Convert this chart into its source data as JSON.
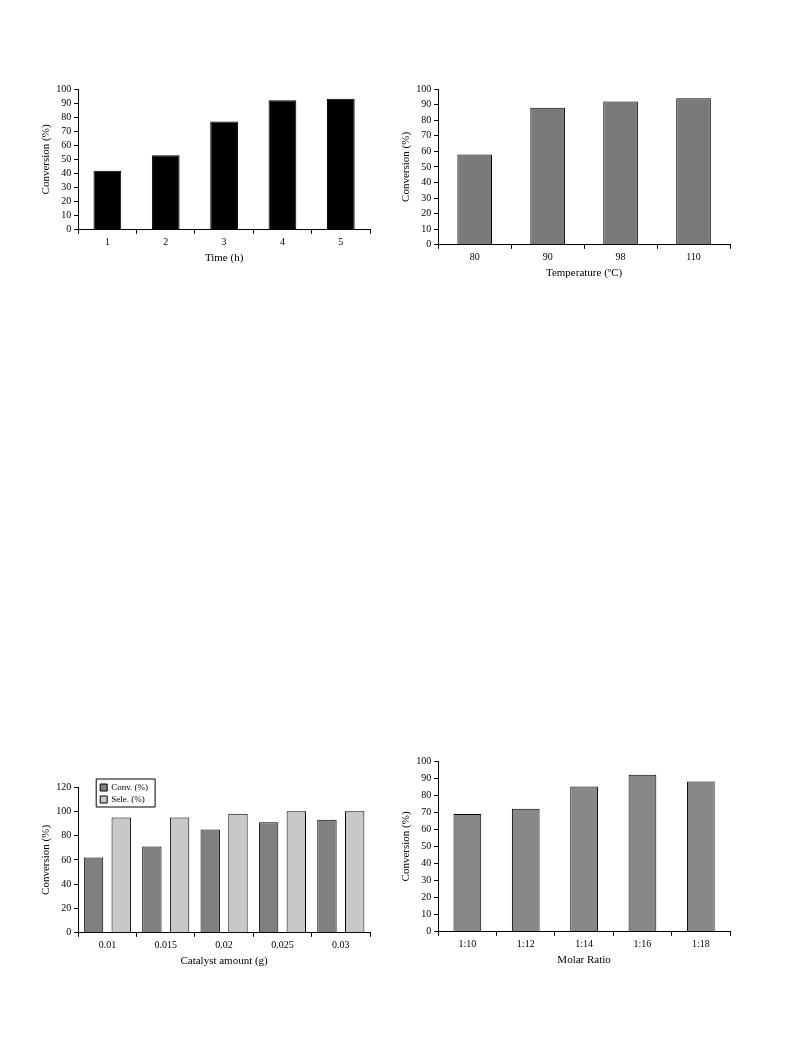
{
  "chart_data": [
    {
      "type": "bar",
      "xlabel": "Time (h)",
      "ylabel": "Conversion (%)",
      "categories": [
        "1",
        "2",
        "3",
        "4",
        "5"
      ],
      "values": [
        42,
        53,
        77,
        92,
        93
      ],
      "color": "#000000",
      "ylim": [
        0,
        100
      ],
      "yticks": [
        0,
        10,
        20,
        30,
        40,
        50,
        60,
        70,
        80,
        90,
        100
      ],
      "grid": false,
      "legend": false
    },
    {
      "type": "bar",
      "xlabel": "Temperature (ºC)",
      "ylabel": "Conversion (%)",
      "categories": [
        "80",
        "90",
        "98",
        "110"
      ],
      "values": [
        58,
        88,
        92,
        94
      ],
      "color": "#7a7a7a",
      "ylim": [
        0,
        100
      ],
      "yticks": [
        0,
        10,
        20,
        30,
        40,
        50,
        60,
        70,
        80,
        90,
        100
      ],
      "grid": false,
      "legend": false
    },
    {
      "type": "bar",
      "xlabel": "Catalyst amount (g)",
      "ylabel": "Conversion (%)",
      "categories": [
        "0.01",
        "0.015",
        "0.02",
        "0.025",
        "0.03"
      ],
      "series": [
        {
          "name": "Conv. (%)",
          "color": "#808080",
          "values": [
            62,
            71,
            85,
            91,
            93
          ]
        },
        {
          "name": "Sele. (%)",
          "color": "#c8c8c8",
          "values": [
            95,
            95,
            98,
            100,
            100
          ]
        }
      ],
      "ylim": [
        0,
        120
      ],
      "yticks": [
        0,
        20,
        40,
        60,
        80,
        100,
        120
      ],
      "grid": false,
      "legend": "top left"
    },
    {
      "type": "bar",
      "xlabel": "Molar Ratio",
      "ylabel": "Conversion (%)",
      "categories": [
        "1:10",
        "1:12",
        "1:14",
        "1:16",
        "1:18"
      ],
      "values": [
        69,
        72,
        85,
        92,
        88
      ],
      "color": "#888888",
      "ylim": [
        0,
        100
      ],
      "yticks": [
        0,
        10,
        20,
        30,
        40,
        50,
        60,
        70,
        80,
        90,
        100
      ],
      "grid": false,
      "legend": false
    }
  ]
}
